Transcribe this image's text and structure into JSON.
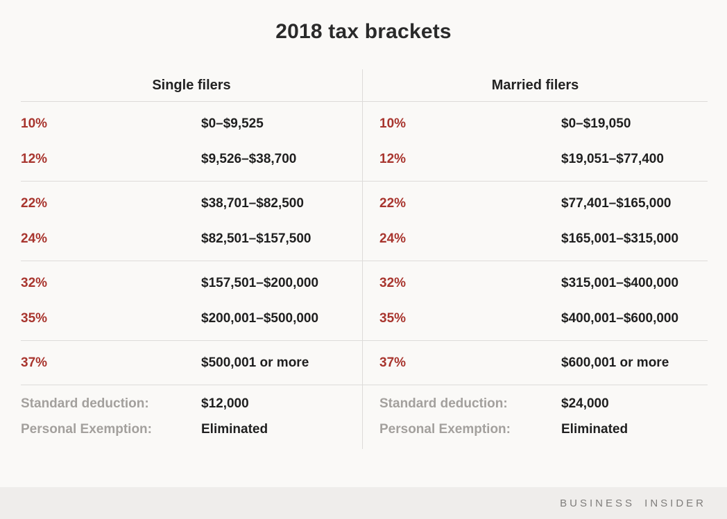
{
  "title": "2018 tax brackets",
  "labels": {
    "standard_deduction": "Standard deduction:",
    "personal_exemption": "Personal Exemption:"
  },
  "branding": "BUSINESS INSIDER",
  "colors": {
    "accent_red": "#a8352e",
    "text_dark": "#1f1f1f",
    "muted_gray": "#a3a09d",
    "background": "#faf9f7",
    "brand_strip": "#efedeb",
    "divider": "#dddbd9",
    "brand_text": "#7f7d7b"
  },
  "chart_data": {
    "type": "table",
    "title": "2018 tax brackets",
    "column_headers": [
      "Single filers",
      "Married filers"
    ],
    "brackets": [
      {
        "rate": "10%",
        "single": "$0–$9,525",
        "married": "$0–$19,050"
      },
      {
        "rate": "12%",
        "single": "$9,526–$38,700",
        "married": "$19,051–$77,400"
      },
      {
        "rate": "22%",
        "single": "$38,701–$82,500",
        "married": "$77,401–$165,000"
      },
      {
        "rate": "24%",
        "single": "$82,501–$157,500",
        "married": "$165,001–$315,000"
      },
      {
        "rate": "32%",
        "single": "$157,501–$200,000",
        "married": "$315,001–$400,000"
      },
      {
        "rate": "35%",
        "single": "$200,001–$500,000",
        "married": "$400,001–$600,000"
      },
      {
        "rate": "37%",
        "single": "$500,001 or more",
        "married": "$600,001 or more"
      }
    ],
    "standard_deduction": {
      "single": "$12,000",
      "married": "$24,000"
    },
    "personal_exemption": {
      "single": "Eliminated",
      "married": "Eliminated"
    }
  }
}
